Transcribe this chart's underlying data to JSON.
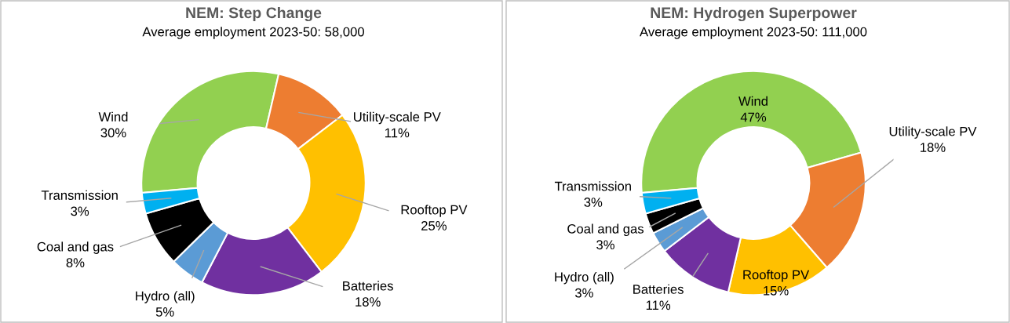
{
  "chart_data": [
    {
      "type": "donut",
      "title": "NEM: Step Change",
      "subtitle": "Average employment 2023-50: 58,000",
      "categories": [
        "Wind",
        "Utility-scale PV",
        "Rooftop PV",
        "Batteries",
        "Hydro (all)",
        "Coal and gas",
        "Transmission"
      ],
      "values": [
        30,
        11,
        25,
        18,
        5,
        8,
        3
      ],
      "colors": [
        "#92d050",
        "#ed7d31",
        "#ffc000",
        "#7030a0",
        "#5b9bd5",
        "#000000",
        "#00b0f0"
      ],
      "value_labels": [
        "30%",
        "11%",
        "25%",
        "18%",
        "5%",
        "8%",
        "3%"
      ]
    },
    {
      "type": "donut",
      "title": "NEM: Hydrogen Superpower",
      "subtitle": "Average employment 2023-50: 111,000",
      "categories": [
        "Wind",
        "Utility-scale PV",
        "Rooftop PV",
        "Batteries",
        "Hydro (all)",
        "Coal and gas",
        "Transmission"
      ],
      "values": [
        47,
        18,
        15,
        11,
        3,
        3,
        3
      ],
      "colors": [
        "#92d050",
        "#ed7d31",
        "#ffc000",
        "#7030a0",
        "#5b9bd5",
        "#000000",
        "#00b0f0"
      ],
      "value_labels": [
        "47%",
        "18%",
        "15%",
        "11%",
        "3%",
        "3%",
        "3%"
      ]
    }
  ]
}
